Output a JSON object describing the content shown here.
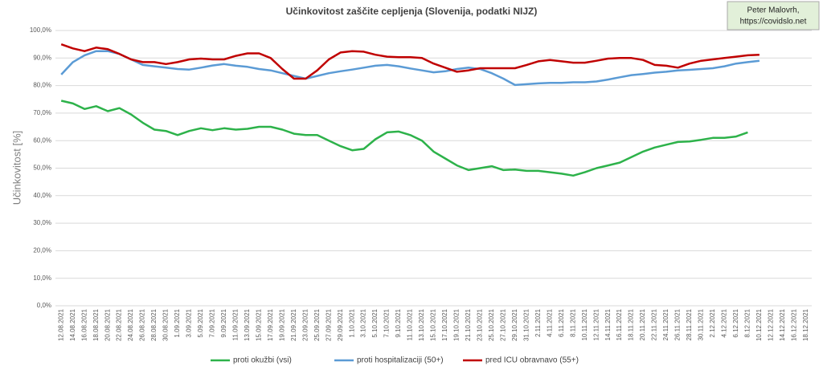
{
  "chart_data": {
    "type": "line",
    "title": "Učinkovitost zaščite cepljenja (Slovenija, podatki NIJZ)",
    "annotation": [
      "Peter Malovrh,",
      "https://covidslo.net"
    ],
    "ylabel": "Učinkovitost [%]",
    "categories": [
      "12.08.2021",
      "14.08.2021",
      "16.08.2021",
      "18.08.2021",
      "20.08.2021",
      "22.08.2021",
      "24.08.2021",
      "26.08.2021",
      "28.08.2021",
      "30.08.2021",
      "1.09.2021",
      "3.09.2021",
      "5.09.2021",
      "7.09.2021",
      "9.09.2021",
      "11.09.2021",
      "13.09.2021",
      "15.09.2021",
      "17.09.2021",
      "19.09.2021",
      "21.09.2021",
      "23.09.2021",
      "25.09.2021",
      "27.09.2021",
      "29.09.2021",
      "1.10.2021",
      "3.10.2021",
      "5.10.2021",
      "7.10.2021",
      "9.10.2021",
      "11.10.2021",
      "13.10.2021",
      "15.10.2021",
      "17.10.2021",
      "19.10.2021",
      "21.10.2021",
      "23.10.2021",
      "25.10.2021",
      "27.10.2021",
      "29.10.2021",
      "31.10.2021",
      "2.11.2021",
      "4.11.2021",
      "6.11.2021",
      "8.11.2021",
      "10.11.2021",
      "12.11.2021",
      "14.11.2021",
      "16.11.2021",
      "18.11.2021",
      "20.11.2021",
      "22.11.2021",
      "24.11.2021",
      "26.11.2021",
      "28.11.2021",
      "30.11.2021",
      "2.12.2021",
      "4.12.2021",
      "6.12.2021",
      "8.12.2021",
      "10.12.2021",
      "12.12.2021",
      "14.12.2021",
      "16.12.2021",
      "18.12.2021"
    ],
    "series": [
      {
        "name": "proti okužbi (vsi)",
        "color": "#2db24a",
        "values": [
          74.5,
          73.5,
          71.5,
          72.5,
          70.7,
          71.8,
          69.5,
          66.5,
          64,
          63.5,
          62,
          63.5,
          64.5,
          63.8,
          64.5,
          64,
          64.3,
          65,
          65,
          64,
          62.5,
          62,
          62,
          60,
          58,
          56.5,
          57,
          60.5,
          63,
          63.3,
          62,
          60,
          56,
          53.5,
          51,
          49.3,
          50,
          50.7,
          49.3,
          49.5,
          49,
          49,
          48.5,
          48,
          47.3,
          48.5,
          50,
          51,
          52,
          54,
          56,
          57.5,
          58.5,
          59.5,
          59.7,
          60.3,
          61,
          61,
          61.5,
          63,
          null,
          null,
          null,
          null,
          null
        ]
      },
      {
        "name": "proti hospitalizaciji (50+)",
        "color": "#5b9bd5",
        "values": [
          84,
          88.5,
          91,
          92.5,
          92.5,
          91.5,
          89.5,
          87.5,
          87,
          86.5,
          86,
          85.8,
          86.5,
          87.3,
          87.8,
          87.2,
          86.8,
          86,
          85.5,
          84.5,
          83.5,
          82.5,
          83.5,
          84.5,
          85.2,
          85.8,
          86.5,
          87.2,
          87.5,
          87,
          86.2,
          85.5,
          84.8,
          85.2,
          86,
          86.5,
          86,
          84.5,
          82.5,
          80.2,
          80.5,
          80.8,
          81,
          81,
          81.2,
          81.2,
          81.5,
          82.2,
          83,
          83.8,
          84.2,
          84.7,
          85,
          85.5,
          85.7,
          86,
          86.3,
          87,
          88,
          88.5,
          89,
          null,
          null,
          null,
          null
        ]
      },
      {
        "name": "pred ICU obravnavo (55+)",
        "color": "#c00000",
        "values": [
          95,
          93.5,
          92.5,
          93.8,
          93.2,
          91.5,
          89.5,
          88.5,
          88.5,
          87.8,
          88.5,
          89.5,
          89.8,
          89.5,
          89.5,
          90.8,
          91.7,
          91.7,
          90,
          86,
          82.5,
          82.5,
          85.5,
          89.5,
          92,
          92.5,
          92.3,
          91.2,
          90.5,
          90.3,
          90.3,
          90,
          88,
          86.5,
          85,
          85.5,
          86.3,
          86.3,
          86.3,
          86.3,
          87.5,
          88.8,
          89.3,
          88.8,
          88.3,
          88.3,
          89,
          89.8,
          90,
          90,
          89.3,
          87.5,
          87.2,
          86.5,
          88,
          89,
          89.5,
          90,
          90.5,
          91,
          91.2,
          null,
          null,
          null,
          null
        ]
      }
    ],
    "ylim": [
      0,
      100
    ],
    "yticks": [
      {
        "value": 0,
        "label": "0,0%"
      },
      {
        "value": 10,
        "label": "10,0%"
      },
      {
        "value": 20,
        "label": "20,0%"
      },
      {
        "value": 30,
        "label": "30,0%"
      },
      {
        "value": 40,
        "label": "40,0%"
      },
      {
        "value": 50,
        "label": "50,0%"
      },
      {
        "value": 60,
        "label": "60,0%"
      },
      {
        "value": 70,
        "label": "70,0%"
      },
      {
        "value": 80,
        "label": "80,0%"
      },
      {
        "value": 90,
        "label": "90,0%"
      },
      {
        "value": 100,
        "label": "100,0%"
      }
    ],
    "grid": true,
    "legend": "bottom"
  }
}
